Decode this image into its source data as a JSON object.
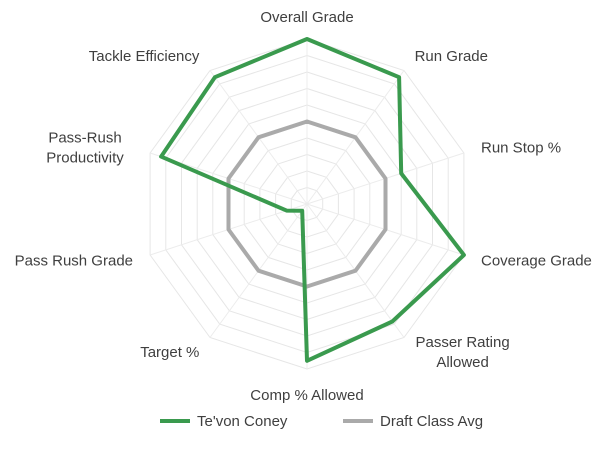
{
  "chart_data": {
    "type": "radar",
    "axes": [
      "Overall Grade",
      "Run Grade",
      "Run Stop %",
      "Coverage Grade",
      "Passer Rating Allowed",
      "Comp % Allowed",
      "Target %",
      "Pass Rush Grade",
      "Pass-Rush Productivity",
      "Tackle Efficiency"
    ],
    "series": [
      {
        "name": "Te'von Coney",
        "color": "#3a9a4e",
        "values": [
          100,
          95,
          60,
          100,
          88,
          95,
          5,
          13,
          93,
          95
        ]
      },
      {
        "name": "Draft Class Avg",
        "color": "#aaaaaa",
        "values": [
          50,
          50,
          50,
          50,
          50,
          50,
          50,
          50,
          50,
          50
        ]
      }
    ],
    "r_range": [
      0,
      100
    ],
    "grid": true,
    "legend_position": "bottom"
  }
}
